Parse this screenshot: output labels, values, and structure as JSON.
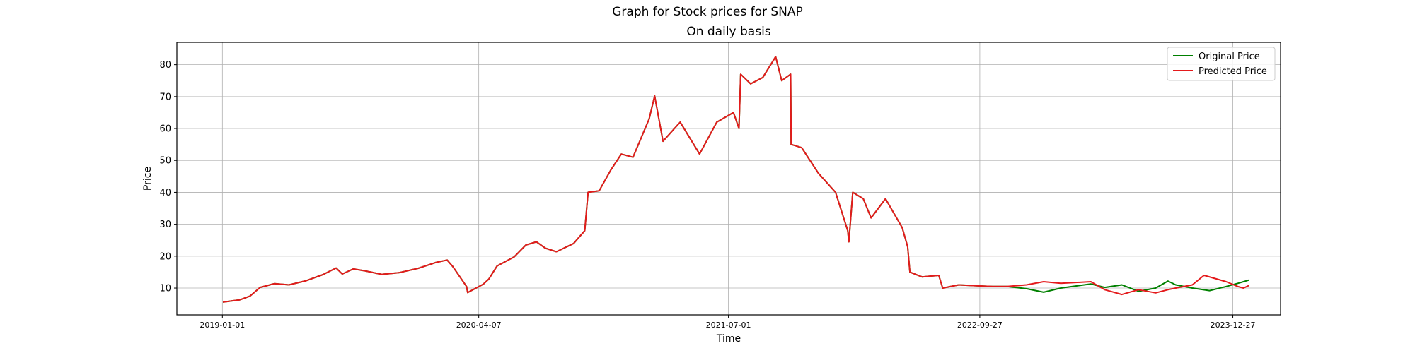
{
  "chart_data": {
    "type": "line",
    "title": "Graph for Stock prices for SNAP",
    "subtitle": "On daily basis",
    "xlabel": "Time",
    "ylabel": "Price",
    "x_ticks": [
      "2019-01-01",
      "2020-04-07",
      "2021-07-01",
      "2022-09-27",
      "2023-12-27"
    ],
    "y_ticks": [
      10,
      20,
      30,
      40,
      50,
      60,
      70,
      80
    ],
    "xlim": [
      "2018-10-11",
      "2024-03-22"
    ],
    "ylim": [
      1.6,
      87
    ],
    "grid": true,
    "legend_position": "top-right",
    "series": [
      {
        "name": "Original Price",
        "color": "#008000",
        "points": [
          [
            "2019-01-02",
            5.6
          ],
          [
            "2019-02-01",
            6.3
          ],
          [
            "2019-02-20",
            7.5
          ],
          [
            "2019-03-10",
            10.2
          ],
          [
            "2019-04-05",
            11.4
          ],
          [
            "2019-05-01",
            11.0
          ],
          [
            "2019-06-01",
            12.3
          ],
          [
            "2019-07-01",
            14.2
          ],
          [
            "2019-07-25",
            16.3
          ],
          [
            "2019-08-05",
            14.4
          ],
          [
            "2019-08-25",
            16.0
          ],
          [
            "2019-09-15",
            15.4
          ],
          [
            "2019-10-15",
            14.3
          ],
          [
            "2019-11-15",
            14.8
          ],
          [
            "2019-12-20",
            16.2
          ],
          [
            "2020-01-20",
            18.0
          ],
          [
            "2020-02-10",
            18.8
          ],
          [
            "2020-02-20",
            16.8
          ],
          [
            "2020-03-16",
            10.5
          ],
          [
            "2020-03-18",
            8.6
          ],
          [
            "2020-04-15",
            11.2
          ],
          [
            "2020-04-25",
            12.8
          ],
          [
            "2020-05-10",
            16.9
          ],
          [
            "2020-06-10",
            19.8
          ],
          [
            "2020-07-01",
            23.5
          ],
          [
            "2020-07-20",
            24.5
          ],
          [
            "2020-08-05",
            22.5
          ],
          [
            "2020-08-25",
            21.4
          ],
          [
            "2020-09-25",
            24.0
          ],
          [
            "2020-10-15",
            28.0
          ],
          [
            "2020-10-21",
            40.0
          ],
          [
            "2020-11-10",
            40.5
          ],
          [
            "2020-12-01",
            47.0
          ],
          [
            "2020-12-20",
            52.0
          ],
          [
            "2021-01-10",
            51.0
          ],
          [
            "2021-02-08",
            63.0
          ],
          [
            "2021-02-18",
            70.2
          ],
          [
            "2021-03-05",
            56.0
          ],
          [
            "2021-04-05",
            62.0
          ],
          [
            "2021-05-10",
            52.0
          ],
          [
            "2021-06-10",
            62.0
          ],
          [
            "2021-07-10",
            65.0
          ],
          [
            "2021-07-20",
            60.0
          ],
          [
            "2021-07-23",
            77.0
          ],
          [
            "2021-08-10",
            74.0
          ],
          [
            "2021-09-01",
            76.0
          ],
          [
            "2021-09-24",
            82.5
          ],
          [
            "2021-10-05",
            75.0
          ],
          [
            "2021-10-21",
            77.0
          ],
          [
            "2021-10-22",
            55.0
          ],
          [
            "2021-11-10",
            54.0
          ],
          [
            "2021-12-10",
            46.0
          ],
          [
            "2022-01-10",
            40.0
          ],
          [
            "2022-02-01",
            28.0
          ],
          [
            "2022-02-03",
            24.5
          ],
          [
            "2022-02-10",
            40.0
          ],
          [
            "2022-03-01",
            38.0
          ],
          [
            "2022-03-15",
            32.0
          ],
          [
            "2022-04-10",
            38.0
          ],
          [
            "2022-05-10",
            29.0
          ],
          [
            "2022-05-20",
            23.0
          ],
          [
            "2022-05-24",
            15.0
          ],
          [
            "2022-06-15",
            13.5
          ],
          [
            "2022-07-15",
            14.0
          ],
          [
            "2022-07-22",
            10.0
          ],
          [
            "2022-08-20",
            11.0
          ],
          [
            "2022-10-20",
            10.5
          ],
          [
            "2022-11-15",
            10.5
          ],
          [
            "2022-12-20",
            9.8
          ],
          [
            "2023-01-20",
            8.7
          ],
          [
            "2023-02-20",
            10.0
          ],
          [
            "2023-04-15",
            11.3
          ],
          [
            "2023-05-10",
            10.2
          ],
          [
            "2023-06-10",
            11.0
          ],
          [
            "2023-07-10",
            9.0
          ],
          [
            "2023-08-10",
            10.0
          ],
          [
            "2023-09-01",
            12.2
          ],
          [
            "2023-09-15",
            11.0
          ],
          [
            "2023-10-15",
            10.0
          ],
          [
            "2023-11-15",
            9.2
          ],
          [
            "2023-12-15",
            10.5
          ],
          [
            "2024-01-05",
            11.5
          ],
          [
            "2024-01-15",
            12.0
          ],
          [
            "2024-01-25",
            12.5
          ]
        ]
      },
      {
        "name": "Predicted Price",
        "color": "#e41a1c",
        "points": [
          [
            "2019-01-02",
            5.6
          ],
          [
            "2019-02-01",
            6.3
          ],
          [
            "2019-02-20",
            7.5
          ],
          [
            "2019-03-10",
            10.2
          ],
          [
            "2019-04-05",
            11.4
          ],
          [
            "2019-05-01",
            11.0
          ],
          [
            "2019-06-01",
            12.3
          ],
          [
            "2019-07-01",
            14.2
          ],
          [
            "2019-07-25",
            16.3
          ],
          [
            "2019-08-05",
            14.4
          ],
          [
            "2019-08-25",
            16.0
          ],
          [
            "2019-09-15",
            15.4
          ],
          [
            "2019-10-15",
            14.3
          ],
          [
            "2019-11-15",
            14.8
          ],
          [
            "2019-12-20",
            16.2
          ],
          [
            "2020-01-20",
            18.0
          ],
          [
            "2020-02-10",
            18.8
          ],
          [
            "2020-02-20",
            16.8
          ],
          [
            "2020-03-16",
            10.5
          ],
          [
            "2020-03-18",
            8.6
          ],
          [
            "2020-04-15",
            11.2
          ],
          [
            "2020-04-25",
            12.8
          ],
          [
            "2020-05-10",
            16.9
          ],
          [
            "2020-06-10",
            19.8
          ],
          [
            "2020-07-01",
            23.5
          ],
          [
            "2020-07-20",
            24.5
          ],
          [
            "2020-08-05",
            22.5
          ],
          [
            "2020-08-25",
            21.4
          ],
          [
            "2020-09-25",
            24.0
          ],
          [
            "2020-10-15",
            28.0
          ],
          [
            "2020-10-21",
            40.0
          ],
          [
            "2020-11-10",
            40.5
          ],
          [
            "2020-12-01",
            47.0
          ],
          [
            "2020-12-20",
            52.0
          ],
          [
            "2021-01-10",
            51.0
          ],
          [
            "2021-02-08",
            63.0
          ],
          [
            "2021-02-18",
            70.2
          ],
          [
            "2021-03-05",
            56.0
          ],
          [
            "2021-04-05",
            62.0
          ],
          [
            "2021-05-10",
            52.0
          ],
          [
            "2021-06-10",
            62.0
          ],
          [
            "2021-07-10",
            65.0
          ],
          [
            "2021-07-20",
            60.0
          ],
          [
            "2021-07-23",
            77.0
          ],
          [
            "2021-08-10",
            74.0
          ],
          [
            "2021-09-01",
            76.0
          ],
          [
            "2021-09-24",
            82.5
          ],
          [
            "2021-10-05",
            75.0
          ],
          [
            "2021-10-21",
            77.0
          ],
          [
            "2021-10-22",
            55.0
          ],
          [
            "2021-11-10",
            54.0
          ],
          [
            "2021-12-10",
            46.0
          ],
          [
            "2022-01-10",
            40.0
          ],
          [
            "2022-02-01",
            28.0
          ],
          [
            "2022-02-03",
            24.5
          ],
          [
            "2022-02-10",
            40.0
          ],
          [
            "2022-03-01",
            38.0
          ],
          [
            "2022-03-15",
            32.0
          ],
          [
            "2022-04-10",
            38.0
          ],
          [
            "2022-05-10",
            29.0
          ],
          [
            "2022-05-20",
            23.0
          ],
          [
            "2022-05-24",
            15.0
          ],
          [
            "2022-06-15",
            13.5
          ],
          [
            "2022-07-15",
            14.0
          ],
          [
            "2022-07-22",
            10.0
          ],
          [
            "2022-08-20",
            11.0
          ],
          [
            "2022-10-20",
            10.5
          ],
          [
            "2022-11-15",
            10.5
          ],
          [
            "2022-12-20",
            11.0
          ],
          [
            "2023-01-20",
            12.0
          ],
          [
            "2023-02-20",
            11.5
          ],
          [
            "2023-04-15",
            12.0
          ],
          [
            "2023-05-10",
            9.5
          ],
          [
            "2023-06-10",
            8.0
          ],
          [
            "2023-07-10",
            9.5
          ],
          [
            "2023-08-10",
            8.5
          ],
          [
            "2023-09-01",
            9.5
          ],
          [
            "2023-09-15",
            10.0
          ],
          [
            "2023-10-15",
            11.0
          ],
          [
            "2023-11-05",
            14.0
          ],
          [
            "2023-11-25",
            13.0
          ],
          [
            "2023-12-15",
            12.0
          ],
          [
            "2024-01-05",
            10.5
          ],
          [
            "2024-01-15",
            10.0
          ],
          [
            "2024-01-25",
            10.8
          ]
        ]
      }
    ]
  }
}
